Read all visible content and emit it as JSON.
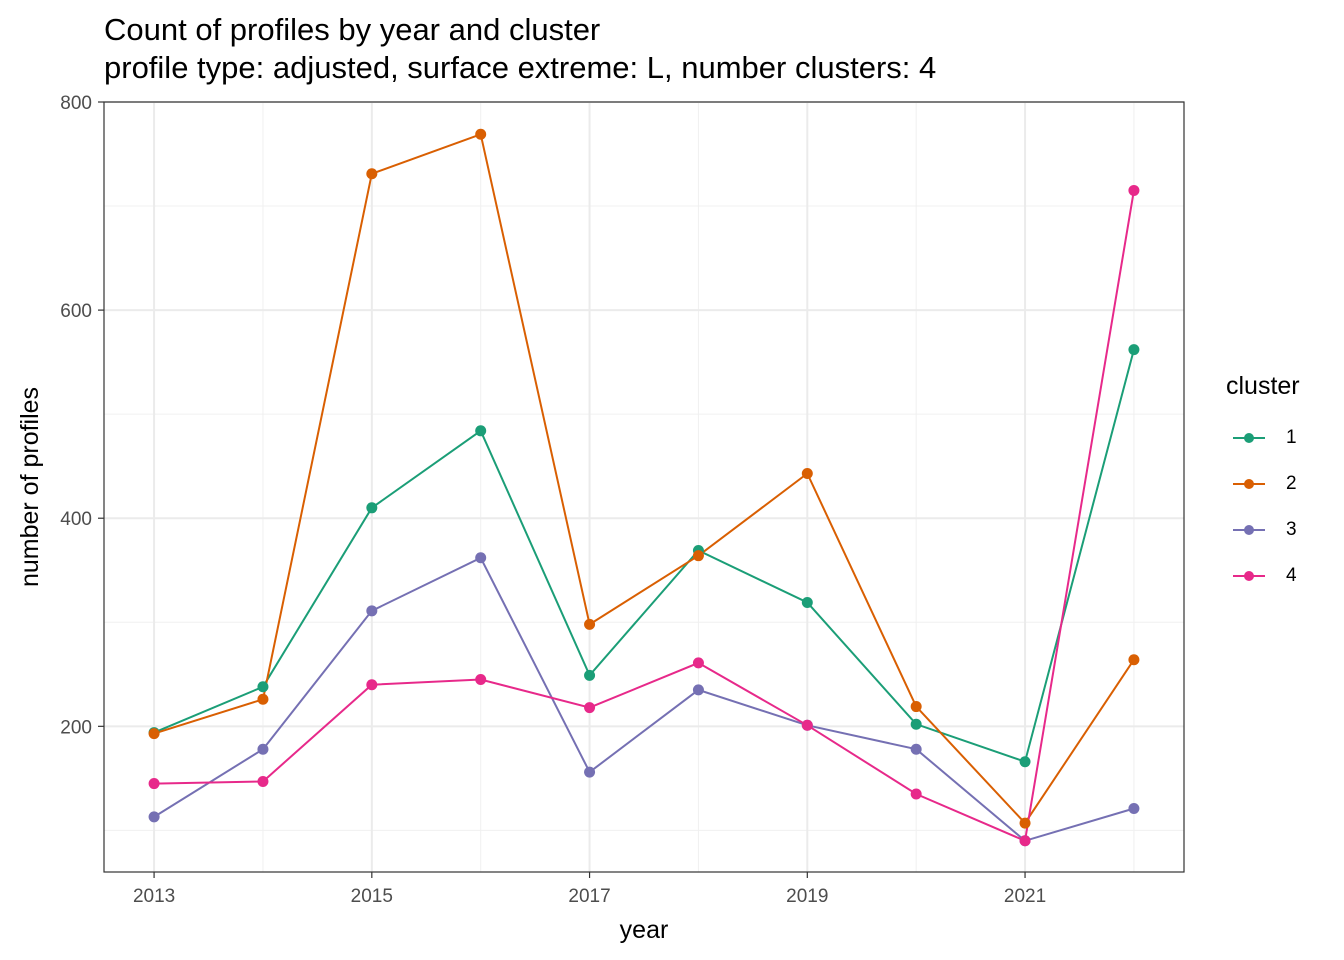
{
  "title": "Count of profiles by year and cluster",
  "subtitle": "profile type: adjusted, surface extreme: L, number clusters: 4",
  "chart_data": {
    "type": "line",
    "title": "Count of profiles by year and cluster",
    "subtitle": "profile type: adjusted, surface extreme: L, number clusters: 4",
    "xlabel": "year",
    "ylabel": "number of profiles",
    "x": [
      2013,
      2014,
      2015,
      2016,
      2017,
      2018,
      2019,
      2020,
      2021,
      2022
    ],
    "xlim": [
      2012.54,
      2022.46
    ],
    "ylim": [
      60,
      800
    ],
    "x_ticks": [
      "2013",
      "2015",
      "2017",
      "2019",
      "2021"
    ],
    "y_ticks": [
      "200",
      "400",
      "600",
      "800"
    ],
    "grid": true,
    "legend_title": "cluster",
    "legend_position": "right",
    "series": [
      {
        "name": "1",
        "color": "#1B9E77",
        "values": [
          194,
          238,
          410,
          484,
          249,
          369,
          319,
          202,
          166,
          562
        ]
      },
      {
        "name": "2",
        "color": "#D95F02",
        "values": [
          193,
          226,
          731,
          769,
          298,
          364,
          443,
          219,
          107,
          264
        ]
      },
      {
        "name": "3",
        "color": "#7570B3",
        "values": [
          113,
          178,
          311,
          362,
          156,
          235,
          201,
          178,
          90,
          121
        ]
      },
      {
        "name": "4",
        "color": "#E7298A",
        "values": [
          145,
          147,
          240,
          245,
          218,
          261,
          201,
          135,
          90,
          715
        ]
      }
    ]
  }
}
